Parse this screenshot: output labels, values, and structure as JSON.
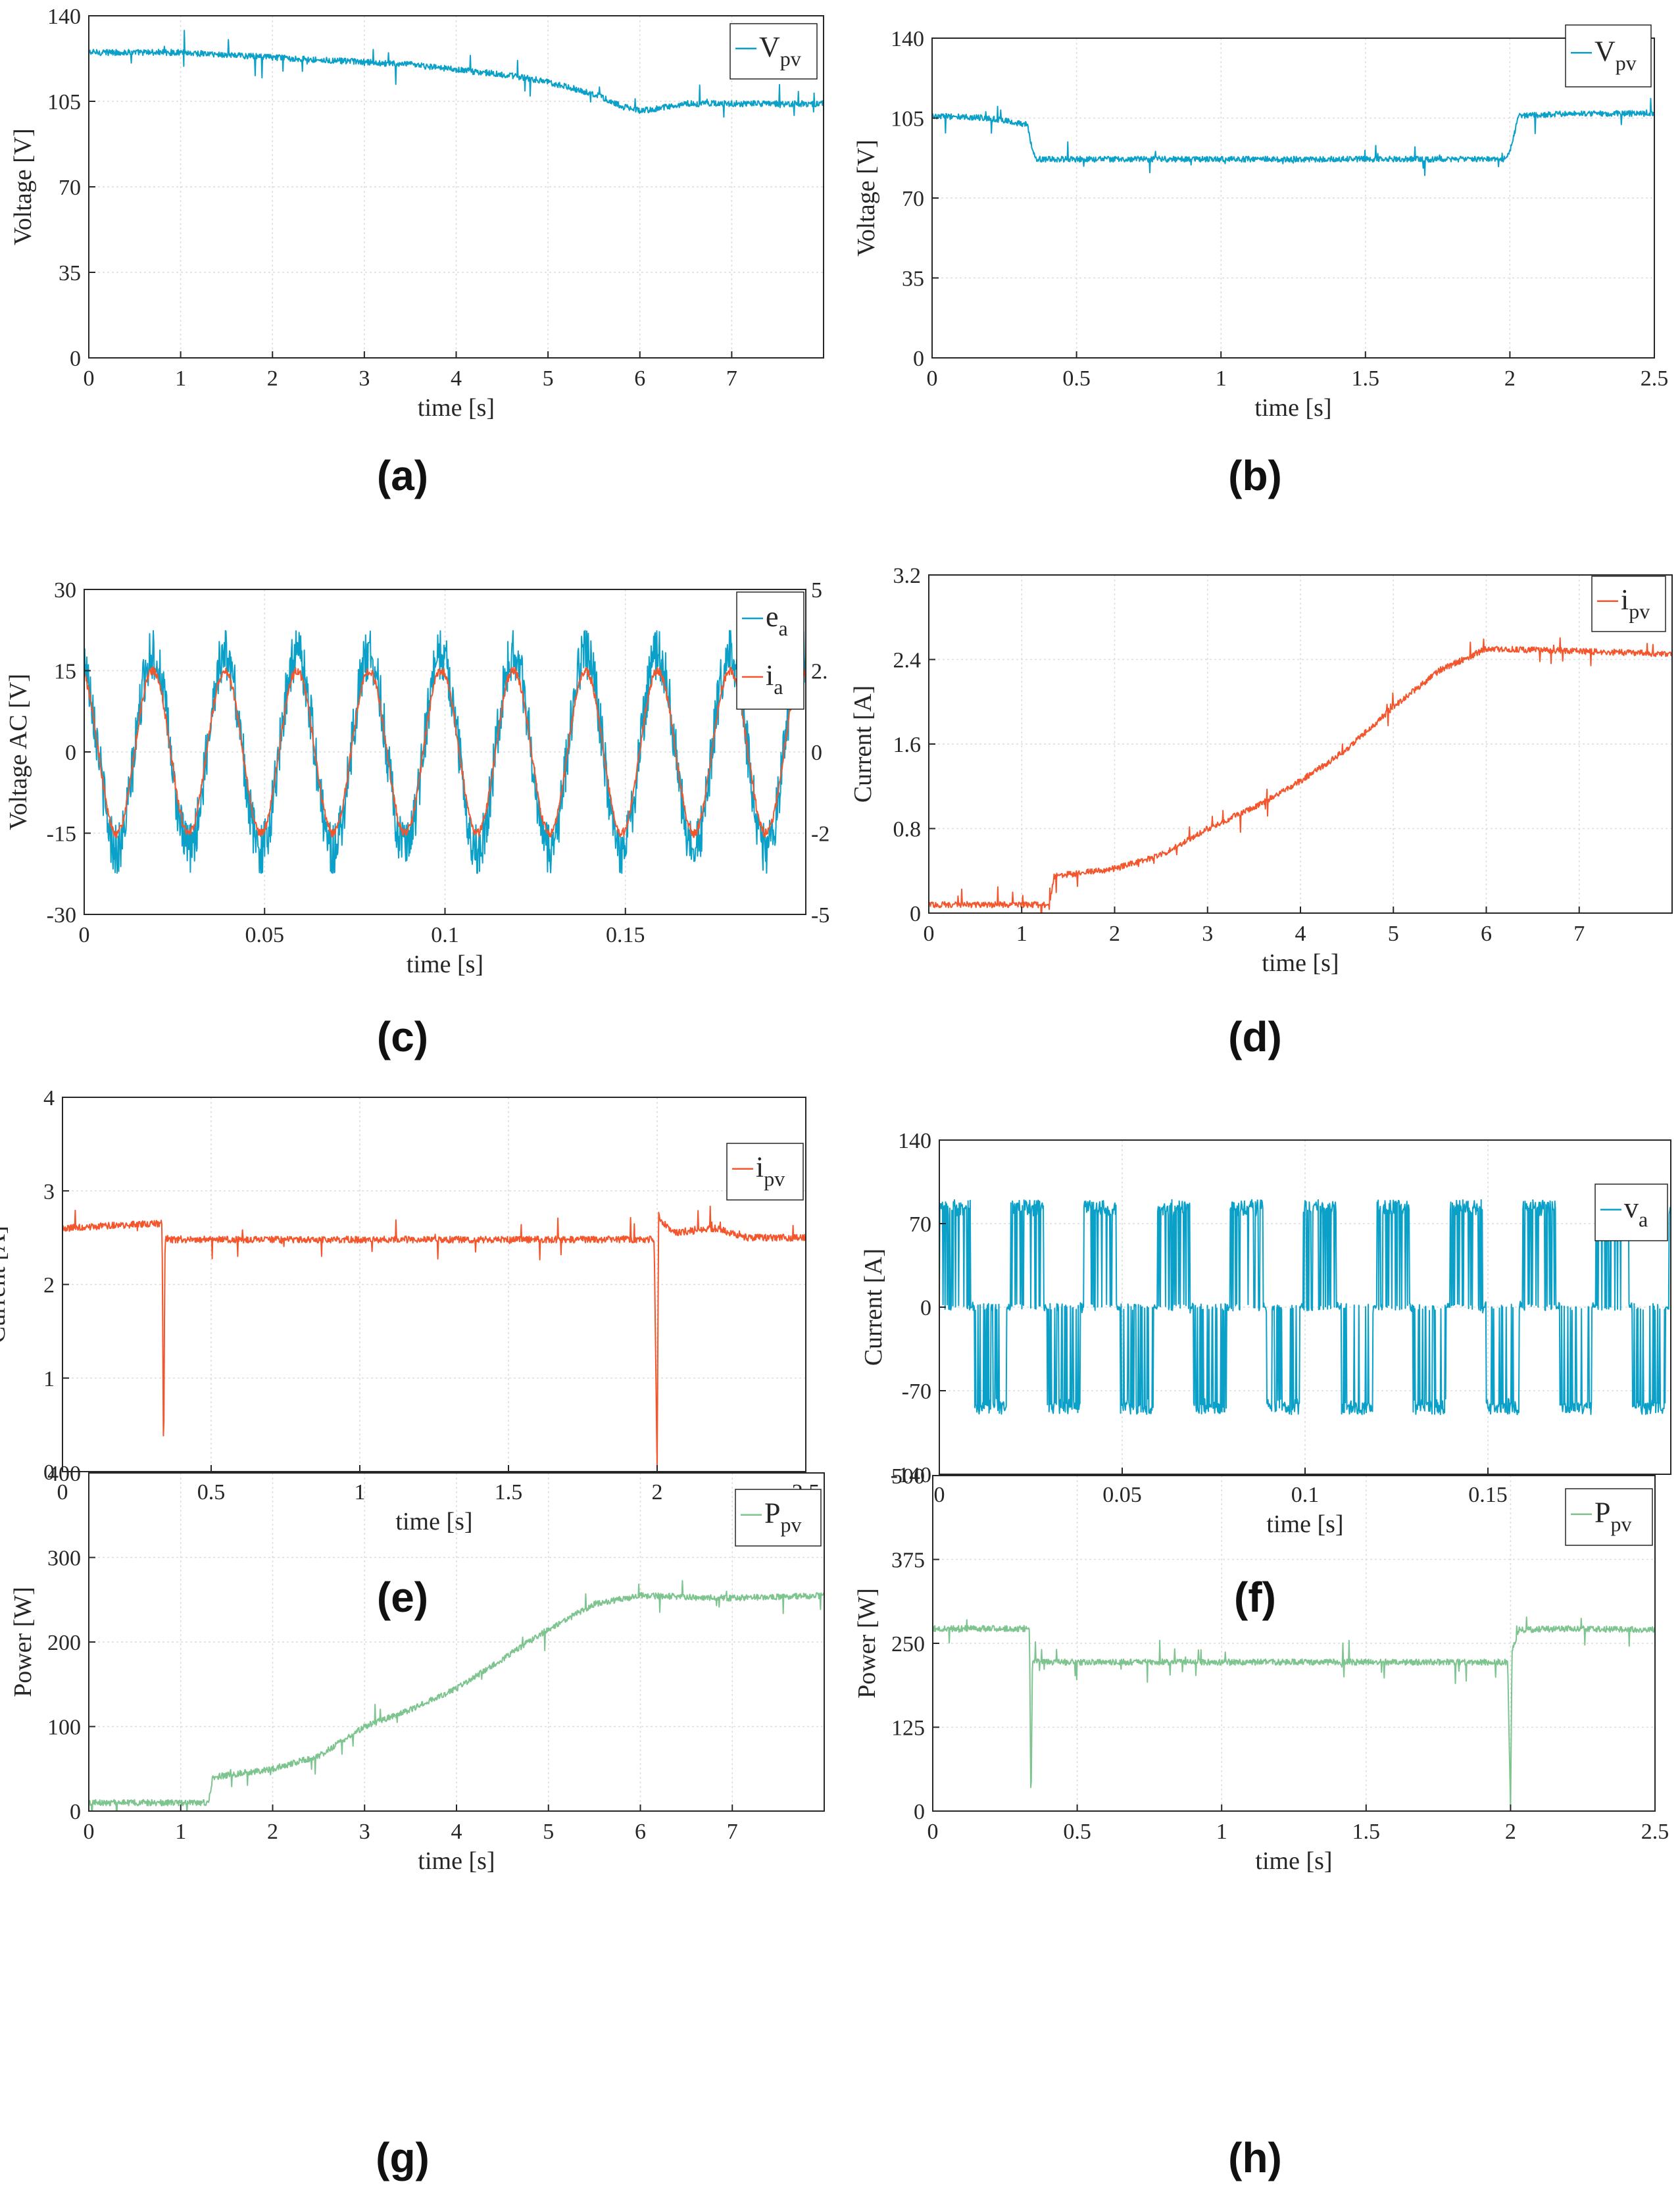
{
  "colors": {
    "blue": "#0aa0c8",
    "orange": "#f3562c",
    "green": "#7dc48f",
    "axis": "#262626",
    "grid": "#dcdcdc"
  },
  "chart_data": [
    {
      "id": "a",
      "type": "line",
      "label": "(a)",
      "xlabel": "time [s]",
      "ylabel": "Voltage [V]",
      "xlim": [
        0,
        8
      ],
      "ylim": [
        0,
        140
      ],
      "xticks": [
        0,
        1,
        2,
        3,
        4,
        5,
        6,
        7
      ],
      "yticks": [
        0,
        35,
        70,
        105,
        140
      ],
      "x_tick_labels": [
        "0",
        "1",
        "2",
        "3",
        "4",
        "5",
        "6",
        "7"
      ],
      "y_tick_labels": [
        "0",
        "35",
        "70",
        "105",
        "140"
      ],
      "series": [
        {
          "name": "Vpv",
          "legend_main": "V",
          "legend_sub": "pv",
          "color": "blue",
          "x": [
            0,
            1,
            1.5,
            2,
            2.5,
            3,
            3.5,
            4,
            4.5,
            5,
            5.5,
            5.8,
            6,
            6.5,
            7,
            7.5,
            8
          ],
          "y": [
            125,
            125,
            124,
            123,
            122,
            121,
            120,
            118,
            116,
            113,
            108,
            103,
            101,
            104,
            104,
            104,
            104
          ]
        }
      ],
      "annotations": []
    },
    {
      "id": "b",
      "type": "line",
      "label": "(b)",
      "xlabel": "time [s]",
      "ylabel": "Voltage [V]",
      "xlim": [
        0,
        2.5
      ],
      "ylim": [
        0,
        140
      ],
      "xticks": [
        0,
        0.5,
        1,
        1.5,
        2,
        2.5
      ],
      "yticks": [
        0,
        35,
        70,
        105,
        140
      ],
      "x_tick_labels": [
        "0",
        "0.5",
        "1",
        "1.5",
        "2",
        "2.5"
      ],
      "y_tick_labels": [
        "0",
        "35",
        "70",
        "105",
        "140"
      ],
      "series": [
        {
          "name": "Vpv",
          "legend_main": "V",
          "legend_sub": "pv",
          "color": "blue",
          "x": [
            0,
            0.2,
            0.33,
            0.34,
            0.36,
            1,
            1.5,
            1.98,
            2.0,
            2.03,
            2.2,
            2.5
          ],
          "y": [
            106,
            105,
            102,
            95,
            87,
            87,
            87,
            87,
            90,
            106,
            107,
            107
          ]
        }
      ],
      "annotations": []
    },
    {
      "id": "c",
      "type": "line",
      "label": "(c)",
      "xlabel": "time [s]",
      "ylabel": "Voltage AC [V]",
      "xlim": [
        0,
        0.2
      ],
      "ylim": [
        -30,
        30
      ],
      "xticks": [
        0,
        0.05,
        0.1,
        0.15
      ],
      "yticks": [
        -30,
        -15,
        0,
        15,
        30
      ],
      "x_tick_labels": [
        "0",
        "0.05",
        "0.1",
        "0.15"
      ],
      "y_tick_labels": [
        "-30",
        "-15",
        "0",
        "15",
        "30"
      ],
      "right_y_tick_labels": [
        "-5",
        "-2",
        "0",
        "2.",
        "5"
      ],
      "series": [
        {
          "name": "ea",
          "legend_main": "e",
          "legend_sub": "a",
          "color": "blue",
          "amplitude": 18,
          "frequency_hz": 50
        },
        {
          "name": "ia",
          "legend_main": "i",
          "legend_sub": "a",
          "color": "orange",
          "amplitude": 15,
          "frequency_hz": 50
        }
      ],
      "annotations": []
    },
    {
      "id": "d",
      "type": "line",
      "label": "(d)",
      "xlabel": "time [s]",
      "ylabel": "Current [A]",
      "xlim": [
        0,
        8
      ],
      "ylim": [
        0,
        3.2
      ],
      "xticks": [
        0,
        1,
        2,
        3,
        4,
        5,
        6,
        7
      ],
      "yticks": [
        0,
        0.8,
        1.6,
        2.4,
        3.2
      ],
      "x_tick_labels": [
        "0",
        "1",
        "2",
        "3",
        "4",
        "5",
        "6",
        "7"
      ],
      "y_tick_labels": [
        "0",
        "0.8",
        "1.6",
        "2.4",
        "3.2"
      ],
      "series": [
        {
          "name": "ipv",
          "legend_main": "i",
          "legend_sub": "pv",
          "color": "orange",
          "x": [
            0,
            1.3,
            1.35,
            2,
            2.5,
            3,
            3.5,
            4,
            4.5,
            5,
            5.5,
            6,
            7,
            8
          ],
          "y": [
            0.08,
            0.08,
            0.35,
            0.42,
            0.55,
            0.8,
            1.0,
            1.25,
            1.55,
            1.95,
            2.3,
            2.5,
            2.48,
            2.45
          ]
        }
      ],
      "annotations": []
    },
    {
      "id": "e",
      "type": "line",
      "label": "(e)",
      "xlabel": "time [s]",
      "ylabel": "Current [A]",
      "xlim": [
        0,
        2.5
      ],
      "ylim": [
        0,
        4
      ],
      "xticks": [
        0,
        0.5,
        1,
        1.5,
        2,
        2.5
      ],
      "yticks": [
        0,
        1,
        2,
        3,
        4
      ],
      "x_tick_labels": [
        "0",
        "0.5",
        "1",
        "1.5",
        "2",
        "2.5"
      ],
      "y_tick_labels": [
        "0",
        "1",
        "2",
        "3",
        "4"
      ],
      "series": [
        {
          "name": "ipv",
          "legend_main": "i",
          "legend_sub": "pv",
          "color": "orange",
          "x": [
            0,
            0.3,
            0.335,
            0.34,
            0.345,
            0.37,
            1,
            1.5,
            1.99,
            2.0,
            2.005,
            2.01,
            2.05,
            2.2,
            2.3,
            2.5
          ],
          "y": [
            2.6,
            2.65,
            2.65,
            0,
            2.5,
            2.48,
            2.48,
            2.48,
            2.48,
            0,
            2.75,
            2.7,
            2.55,
            2.6,
            2.5,
            2.5
          ]
        }
      ],
      "annotations": []
    },
    {
      "id": "f",
      "type": "line",
      "label": "(f)",
      "xlabel": "time [s]",
      "ylabel": "Current [A]",
      "xlim": [
        0,
        0.2
      ],
      "ylim": [
        -140,
        140
      ],
      "xticks": [
        0,
        0.05,
        0.1,
        0.15
      ],
      "yticks": [
        -140,
        -70,
        0,
        70,
        140
      ],
      "x_tick_labels": [
        "0",
        "0.05",
        "0.1",
        "0.15"
      ],
      "y_tick_labels": [
        "-140",
        "-70",
        "0",
        "70",
        "140"
      ],
      "series": [
        {
          "name": "va",
          "legend_main": "v",
          "legend_sub": "a",
          "color": "blue",
          "levels": [
            -85,
            0,
            85
          ],
          "frequency_hz": 50
        }
      ],
      "annotations": []
    },
    {
      "id": "g",
      "type": "line",
      "label": "(g)",
      "xlabel": "time [s]",
      "ylabel": "Power [W]",
      "xlim": [
        0,
        8
      ],
      "ylim": [
        0,
        400
      ],
      "xticks": [
        0,
        1,
        2,
        3,
        4,
        5,
        6,
        7
      ],
      "yticks": [
        0,
        100,
        200,
        300,
        400
      ],
      "x_tick_labels": [
        "0",
        "1",
        "2",
        "3",
        "4",
        "5",
        "6",
        "7"
      ],
      "y_tick_labels": [
        "0",
        "100",
        "200",
        "300",
        "400"
      ],
      "series": [
        {
          "name": "Ppv",
          "legend_main": "P",
          "legend_sub": "pv",
          "color": "green",
          "x": [
            0,
            1.3,
            1.35,
            2,
            2.5,
            3,
            3.5,
            4,
            4.5,
            5,
            5.5,
            6,
            7,
            8
          ],
          "y": [
            10,
            10,
            40,
            50,
            65,
            100,
            120,
            145,
            180,
            215,
            245,
            255,
            252,
            255
          ]
        }
      ],
      "annotations": []
    },
    {
      "id": "h",
      "type": "line",
      "label": "(h)",
      "xlabel": "time [s]",
      "ylabel": "Power [W]",
      "xlim": [
        0,
        2.5
      ],
      "ylim": [
        0,
        500
      ],
      "xticks": [
        0,
        0.5,
        1,
        1.5,
        2,
        2.5
      ],
      "yticks": [
        0,
        125,
        250,
        375,
        500
      ],
      "x_tick_labels": [
        "0",
        "0.5",
        "1",
        "1.5",
        "2",
        "2.5"
      ],
      "y_tick_labels": [
        "0",
        "125",
        "250",
        "375",
        "500"
      ],
      "series": [
        {
          "name": "Ppv",
          "legend_main": "P",
          "legend_sub": "pv",
          "color": "green",
          "x": [
            0,
            0.33,
            0.335,
            0.34,
            0.345,
            0.37,
            1,
            1.5,
            1.99,
            2.0,
            2.005,
            2.03,
            2.2,
            2.5
          ],
          "y": [
            272,
            272,
            270,
            0,
            225,
            222,
            222,
            222,
            222,
            0,
            240,
            270,
            272,
            270
          ]
        }
      ],
      "annotations": []
    }
  ]
}
